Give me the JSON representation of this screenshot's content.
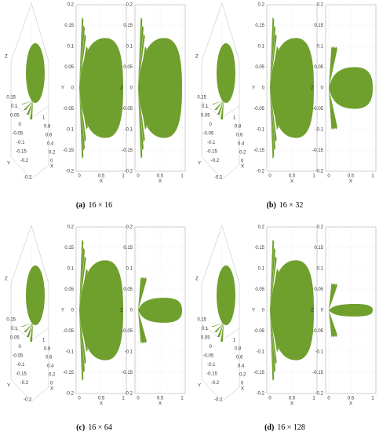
{
  "panels": [
    {
      "label": "(a)",
      "text": "16 × 16"
    },
    {
      "label": "(b)",
      "text": "16 × 32"
    },
    {
      "label": "(c)",
      "text": "16 × 64"
    },
    {
      "label": "(d)",
      "text": "16 × 128"
    }
  ],
  "axes": {
    "x_label": "X",
    "y_label": "Y",
    "z_label": "Z",
    "vertical_ticks": [
      "0.2",
      "0.15",
      "0.1",
      "0.05",
      "0",
      "-0.05",
      "-0.1",
      "-0.15",
      "-0.2"
    ],
    "horizontal_ticks": [
      "0",
      "0.5",
      "1"
    ],
    "view3d_y_ticks": [
      "0.15",
      "0.1",
      "0.05",
      "0",
      "-0.05",
      "-0.1",
      "-0.15",
      "-0.2"
    ],
    "view3d_x_ticks": [
      "0",
      "0.2",
      "0.4",
      "0.6",
      "0.8",
      "1"
    ],
    "view3d_corner": "-0.2"
  }
}
